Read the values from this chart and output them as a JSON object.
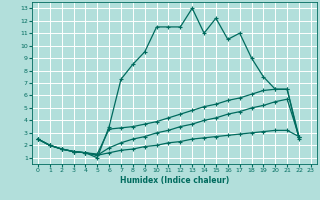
{
  "xlabel": "Humidex (Indice chaleur)",
  "bg_color": "#b2dfdb",
  "grid_color": "#ffffff",
  "line_color": "#006b5e",
  "xlim": [
    -0.5,
    23.5
  ],
  "ylim": [
    0.5,
    13.5
  ],
  "xticks": [
    0,
    1,
    2,
    3,
    4,
    5,
    6,
    7,
    8,
    9,
    10,
    11,
    12,
    13,
    14,
    15,
    16,
    17,
    18,
    19,
    20,
    21,
    22,
    23
  ],
  "yticks": [
    1,
    2,
    3,
    4,
    5,
    6,
    7,
    8,
    9,
    10,
    11,
    12,
    13
  ],
  "lines": [
    {
      "x": [
        0,
        1,
        2,
        3,
        4,
        5,
        6,
        7,
        8,
        9,
        10,
        11,
        12,
        13,
        14,
        15,
        16,
        17,
        18,
        19,
        20,
        21,
        22
      ],
      "y": [
        2.5,
        2.0,
        1.7,
        1.5,
        1.4,
        1.0,
        3.5,
        7.3,
        8.5,
        9.5,
        11.5,
        11.5,
        11.5,
        13.0,
        11.0,
        12.2,
        10.5,
        11.0,
        9.0,
        7.5,
        6.5,
        6.5,
        2.5
      ]
    },
    {
      "x": [
        0,
        1,
        2,
        3,
        4,
        5,
        6,
        7,
        8,
        9,
        10,
        11,
        12,
        13,
        14,
        15,
        16,
        17,
        18,
        19,
        20,
        21,
        22
      ],
      "y": [
        2.5,
        2.0,
        1.7,
        1.5,
        1.4,
        1.3,
        3.3,
        3.4,
        3.5,
        3.7,
        3.9,
        4.2,
        4.5,
        4.8,
        5.1,
        5.3,
        5.6,
        5.8,
        6.1,
        6.4,
        6.5,
        6.5,
        2.7
      ]
    },
    {
      "x": [
        0,
        1,
        2,
        3,
        4,
        5,
        6,
        7,
        8,
        9,
        10,
        11,
        12,
        13,
        14,
        15,
        16,
        17,
        18,
        19,
        20,
        21,
        22
      ],
      "y": [
        2.5,
        2.0,
        1.7,
        1.5,
        1.4,
        1.2,
        1.8,
        2.2,
        2.5,
        2.7,
        3.0,
        3.2,
        3.5,
        3.7,
        4.0,
        4.2,
        4.5,
        4.7,
        5.0,
        5.2,
        5.5,
        5.7,
        2.7
      ]
    },
    {
      "x": [
        0,
        1,
        2,
        3,
        4,
        5,
        6,
        7,
        8,
        9,
        10,
        11,
        12,
        13,
        14,
        15,
        16,
        17,
        18,
        19,
        20,
        21,
        22
      ],
      "y": [
        2.5,
        2.0,
        1.7,
        1.5,
        1.4,
        1.2,
        1.4,
        1.6,
        1.7,
        1.9,
        2.0,
        2.2,
        2.3,
        2.5,
        2.6,
        2.7,
        2.8,
        2.9,
        3.0,
        3.1,
        3.2,
        3.2,
        2.7
      ]
    }
  ]
}
